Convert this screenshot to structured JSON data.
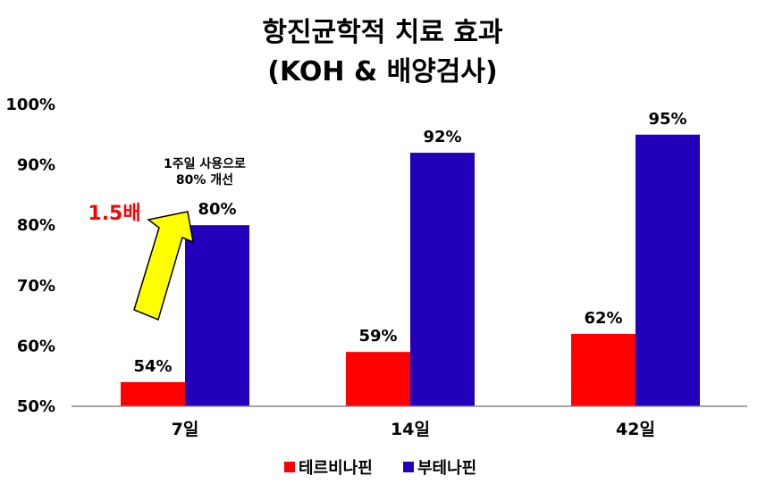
{
  "chart_data": {
    "type": "bar",
    "title_line1": "항진균학적 치료 효과",
    "title_line2": "(KOH & 배양검사)",
    "categories": [
      "7일",
      "14일",
      "42일"
    ],
    "series": [
      {
        "name": "테르비나핀",
        "values": [
          54,
          59,
          62
        ],
        "labels": [
          "54%",
          "59%",
          "62%"
        ],
        "color": "#ff0000"
      },
      {
        "name": "부테나핀",
        "values": [
          80,
          92,
          95
        ],
        "labels": [
          "80%",
          "92%",
          "95%"
        ],
        "color": "#2200bb"
      }
    ],
    "ylim": [
      50,
      100
    ],
    "yticks": [
      50,
      60,
      70,
      80,
      90,
      100
    ],
    "ytick_labels": [
      "50%",
      "60%",
      "70%",
      "80%",
      "90%",
      "100%"
    ],
    "legend_position": "bottom",
    "annotation_line1": "1주일 사용으로",
    "annotation_line2": "80% 개선",
    "multiplier_label": "1.5배",
    "multiplier_color": "#ff0000",
    "arrow_color": "#ffff00"
  }
}
